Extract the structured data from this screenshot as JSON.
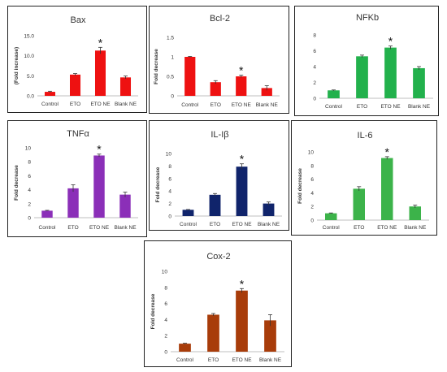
{
  "chart_data": [
    {
      "type": "bar",
      "title": "Bax",
      "ylabel": "(Fold increase)",
      "categories": [
        "Control",
        "ETO",
        "ETO NE",
        "Blank NE"
      ],
      "values": [
        1.0,
        5.3,
        11.3,
        4.6
      ],
      "errors": [
        0.15,
        0.25,
        0.8,
        0.35
      ],
      "yticks": [
        "0.0",
        "5.0",
        "10.0",
        "15.0"
      ],
      "ylim": [
        0,
        15
      ],
      "significant": [
        "",
        "",
        "*",
        ""
      ],
      "color": "#ee1111"
    },
    {
      "type": "bar",
      "title": "Bcl-2",
      "ylabel": "Fold decrease",
      "categories": [
        "Control",
        "ETO",
        "ETO NE",
        "Blank NE"
      ],
      "values": [
        1.0,
        0.35,
        0.5,
        0.2
      ],
      "errors": [
        0.01,
        0.04,
        0.03,
        0.06
      ],
      "yticks": [
        "0",
        "0.5",
        "1",
        "1.5"
      ],
      "ylim": [
        0,
        1.5
      ],
      "significant": [
        "",
        "",
        "*",
        ""
      ],
      "color": "#ee1111"
    },
    {
      "type": "bar",
      "title": "NFKb",
      "ylabel": "",
      "categories": [
        "Control",
        "ETO",
        "ETO NE",
        "Blank NE"
      ],
      "values": [
        1.0,
        5.3,
        6.4,
        3.8
      ],
      "errors": [
        0.05,
        0.15,
        0.2,
        0.2
      ],
      "yticks": [
        "0",
        "2",
        "4",
        "6",
        "8"
      ],
      "ylim": [
        0,
        8
      ],
      "significant": [
        "",
        "",
        "*",
        ""
      ],
      "color": "#22b14c"
    },
    {
      "type": "bar",
      "title": "TNFα",
      "ylabel": "Fold decrease",
      "categories": [
        "Control",
        "ETO",
        "ETO NE",
        "Blank NE"
      ],
      "values": [
        1.0,
        4.2,
        8.9,
        3.3
      ],
      "errors": [
        0.05,
        0.5,
        0.2,
        0.35
      ],
      "yticks": [
        "0",
        "2",
        "4",
        "6",
        "8",
        "10"
      ],
      "ylim": [
        0,
        10
      ],
      "significant": [
        "",
        "",
        "*",
        ""
      ],
      "color": "#8b2fb8"
    },
    {
      "type": "bar",
      "title": "IL-Iβ",
      "ylabel": "Fold decrease",
      "categories": [
        "Control",
        "ETO",
        "ETO NE",
        "Blank NE"
      ],
      "values": [
        1.0,
        3.4,
        7.9,
        2.0
      ],
      "errors": [
        0.05,
        0.2,
        0.45,
        0.25
      ],
      "yticks": [
        "0",
        "2",
        "4",
        "6",
        "8",
        "10"
      ],
      "ylim": [
        0,
        10
      ],
      "significant": [
        "",
        "",
        "*",
        ""
      ],
      "color": "#10246b"
    },
    {
      "type": "bar",
      "title": "IL-6",
      "ylabel": "Fold decrease",
      "categories": [
        "Control",
        "ETO",
        "ETO NE",
        "Blank NE"
      ],
      "values": [
        1.0,
        4.6,
        9.1,
        2.0
      ],
      "errors": [
        0.05,
        0.3,
        0.2,
        0.2
      ],
      "yticks": [
        "0",
        "2",
        "4",
        "6",
        "8",
        "10"
      ],
      "ylim": [
        0,
        10
      ],
      "significant": [
        "",
        "",
        "*",
        ""
      ],
      "color": "#3cb34a"
    },
    {
      "type": "bar",
      "title": "Cox-2",
      "ylabel": "Fold decrease",
      "categories": [
        "Control",
        "ETO",
        "ETO NE",
        "Blank NE"
      ],
      "values": [
        1.0,
        4.6,
        7.6,
        3.9
      ],
      "errors": [
        0.05,
        0.15,
        0.25,
        0.7
      ],
      "yticks": [
        "0",
        "2",
        "4",
        "6",
        "8",
        "10"
      ],
      "ylim": [
        0,
        10
      ],
      "significant": [
        "",
        "",
        "*",
        ""
      ],
      "color": "#a83c0a"
    }
  ]
}
